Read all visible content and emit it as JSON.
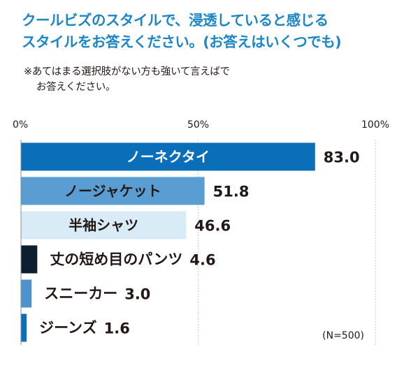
{
  "title": {
    "line1": "クールビズのスタイルで、浸透していると感じる",
    "line2": "スタイルをお答えください。(お答えはいくつでも)"
  },
  "note": {
    "line1": "※あてはまる選択肢がない方も強いて言えばで",
    "line2": "お答えください。"
  },
  "sample_size": "(N=500)",
  "colors": {
    "title": "#1a86c8",
    "grid": "#cccccc",
    "axis": "#8c8c8c"
  },
  "chart_data": {
    "type": "bar",
    "orientation": "horizontal",
    "categories": [
      "ノーネクタイ",
      "ノージャケット",
      "半袖シャツ",
      "丈の短め目のパンツ",
      "スニーカー",
      "ジーンズ"
    ],
    "values": [
      83.0,
      51.8,
      46.6,
      4.6,
      3.0,
      1.6
    ],
    "value_labels": [
      "83.0",
      "51.8",
      "46.6",
      "4.6",
      "3.0",
      "1.6"
    ],
    "bar_colors": [
      "#0a6eb9",
      "#5a9dd2",
      "#d9ebf7",
      "#0d1e30",
      "#4d93cc",
      "#0a6eb9"
    ],
    "label_colors": [
      "#ffffff",
      "#231815",
      "#231815",
      "#231815",
      "#231815",
      "#231815"
    ],
    "label_inside": [
      true,
      true,
      true,
      false,
      false,
      false
    ],
    "xlim": [
      0,
      100
    ],
    "ticks": [
      0,
      50,
      100
    ],
    "tick_labels": [
      "0%",
      "50%",
      "100%"
    ],
    "grid": true,
    "title": "",
    "xlabel": "",
    "ylabel": ""
  }
}
